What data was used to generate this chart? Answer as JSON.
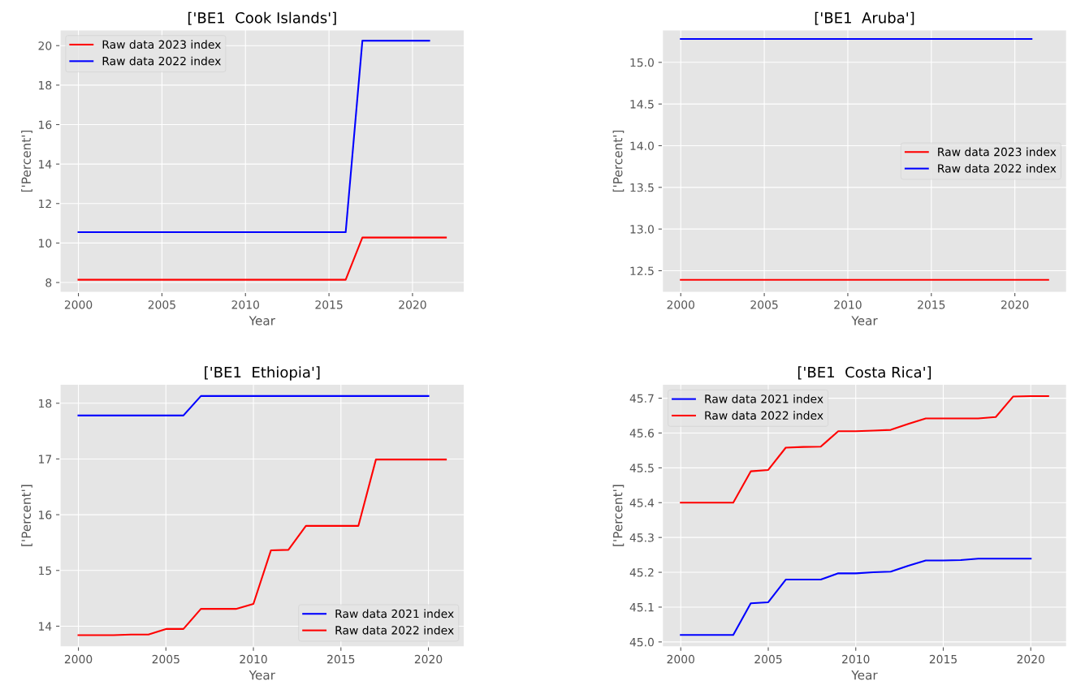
{
  "chart_data": [
    {
      "type": "line",
      "title": "['BE1  Cook Islands']",
      "xlabel": "Year",
      "ylabel": "['Percent']",
      "xlim": [
        1998.9,
        2023.1
      ],
      "ylim": [
        7.5,
        20.8
      ],
      "xticks": [
        2000,
        2005,
        2010,
        2015,
        2020
      ],
      "yticks": [
        8,
        10,
        12,
        14,
        16,
        18,
        20
      ],
      "grid": true,
      "legend": "top left",
      "series": [
        {
          "name": "Raw data 2023 index",
          "color": "#ff0000",
          "x": [
            2000,
            2001,
            2002,
            2003,
            2004,
            2005,
            2006,
            2007,
            2008,
            2009,
            2010,
            2011,
            2012,
            2013,
            2014,
            2015,
            2016,
            2017,
            2018,
            2019,
            2020,
            2021,
            2022
          ],
          "values": [
            8.14,
            8.14,
            8.14,
            8.14,
            8.14,
            8.14,
            8.14,
            8.14,
            8.14,
            8.14,
            8.14,
            8.14,
            8.14,
            8.14,
            8.14,
            8.14,
            8.14,
            10.28,
            10.28,
            10.28,
            10.28,
            10.28,
            10.28
          ]
        },
        {
          "name": "Raw data 2022 index",
          "color": "#0000ff",
          "x": [
            2000,
            2001,
            2002,
            2003,
            2004,
            2005,
            2006,
            2007,
            2008,
            2009,
            2010,
            2011,
            2012,
            2013,
            2014,
            2015,
            2016,
            2017,
            2018,
            2019,
            2020,
            2021
          ],
          "values": [
            10.55,
            10.55,
            10.55,
            10.55,
            10.55,
            10.55,
            10.55,
            10.55,
            10.55,
            10.55,
            10.55,
            10.55,
            10.55,
            10.55,
            10.55,
            10.55,
            10.55,
            20.25,
            20.25,
            20.25,
            20.25,
            20.25
          ]
        }
      ]
    },
    {
      "type": "line",
      "title": "['BE1  Aruba']",
      "xlabel": "Year",
      "ylabel": "['Percent']",
      "xlim": [
        1998.9,
        2023.1
      ],
      "ylim": [
        12.24,
        15.39
      ],
      "xticks": [
        2000,
        2005,
        2010,
        2015,
        2020
      ],
      "yticks": [
        {
          "value": 12.5,
          "label": "12.5"
        },
        {
          "value": 13.0,
          "label": "13.0"
        },
        {
          "value": 13.5,
          "label": "13.5"
        },
        {
          "value": 14.0,
          "label": "14.0"
        },
        {
          "value": 14.5,
          "label": "14.5"
        },
        {
          "value": 15.0,
          "label": "15.0"
        }
      ],
      "grid": true,
      "legend": "right",
      "series": [
        {
          "name": "Raw data 2023 index",
          "color": "#ff0000",
          "x": [
            2000,
            2001,
            2002,
            2003,
            2004,
            2005,
            2006,
            2007,
            2008,
            2009,
            2010,
            2011,
            2012,
            2013,
            2014,
            2015,
            2016,
            2017,
            2018,
            2019,
            2020,
            2021,
            2022
          ],
          "values": [
            12.39,
            12.39,
            12.39,
            12.39,
            12.39,
            12.39,
            12.39,
            12.39,
            12.39,
            12.39,
            12.39,
            12.39,
            12.39,
            12.39,
            12.39,
            12.39,
            12.39,
            12.39,
            12.39,
            12.39,
            12.39,
            12.39,
            12.39
          ]
        },
        {
          "name": "Raw data 2022 index",
          "color": "#0000ff",
          "x": [
            2000,
            2001,
            2002,
            2003,
            2004,
            2005,
            2006,
            2007,
            2008,
            2009,
            2010,
            2011,
            2012,
            2013,
            2014,
            2015,
            2016,
            2017,
            2018,
            2019,
            2020,
            2021
          ],
          "values": [
            15.28,
            15.28,
            15.28,
            15.28,
            15.28,
            15.28,
            15.28,
            15.28,
            15.28,
            15.28,
            15.28,
            15.28,
            15.28,
            15.28,
            15.28,
            15.28,
            15.28,
            15.28,
            15.28,
            15.28,
            15.28,
            15.28
          ]
        }
      ]
    },
    {
      "type": "line",
      "title": "['BE1  Ethiopia']",
      "xlabel": "Year",
      "ylabel": "['Percent']",
      "xlim": [
        1998.95,
        2022.05
      ],
      "ylim": [
        13.63,
        18.34
      ],
      "xticks": [
        2000,
        2005,
        2010,
        2015,
        2020
      ],
      "yticks": [
        14,
        15,
        16,
        17,
        18
      ],
      "grid": true,
      "legend": "bottom right",
      "series": [
        {
          "name": "Raw data 2021 index",
          "color": "#0000ff",
          "x": [
            2000,
            2001,
            2002,
            2003,
            2004,
            2005,
            2006,
            2007,
            2008,
            2009,
            2010,
            2011,
            2012,
            2013,
            2014,
            2015,
            2016,
            2017,
            2018,
            2019,
            2020
          ],
          "values": [
            17.78,
            17.78,
            17.78,
            17.78,
            17.78,
            17.78,
            17.78,
            18.13,
            18.13,
            18.13,
            18.13,
            18.13,
            18.13,
            18.13,
            18.13,
            18.13,
            18.13,
            18.13,
            18.13,
            18.13,
            18.13
          ]
        },
        {
          "name": "Raw data 2022 index",
          "color": "#ff0000",
          "x": [
            2000,
            2001,
            2002,
            2003,
            2004,
            2005,
            2006,
            2007,
            2008,
            2009,
            2010,
            2011,
            2012,
            2013,
            2014,
            2015,
            2016,
            2017,
            2018,
            2019,
            2020,
            2021
          ],
          "values": [
            13.84,
            13.84,
            13.84,
            13.85,
            13.85,
            13.95,
            13.95,
            14.31,
            14.31,
            14.31,
            14.4,
            15.36,
            15.37,
            15.8,
            15.8,
            15.8,
            15.8,
            16.99,
            16.99,
            16.99,
            16.99,
            16.99
          ]
        }
      ]
    },
    {
      "type": "line",
      "title": "['BE1  Costa Rica']",
      "xlabel": "Year",
      "ylabel": "['Percent']",
      "xlim": [
        1998.95,
        2022.05
      ],
      "ylim": [
        44.986,
        45.74
      ],
      "xticks": [
        2000,
        2005,
        2010,
        2015,
        2020
      ],
      "yticks": [
        {
          "value": 45.0,
          "label": "45.0"
        },
        {
          "value": 45.1,
          "label": "45.1"
        },
        {
          "value": 45.2,
          "label": "45.2"
        },
        {
          "value": 45.3,
          "label": "45.3"
        },
        {
          "value": 45.4,
          "label": "45.4"
        },
        {
          "value": 45.5,
          "label": "45.5"
        },
        {
          "value": 45.6,
          "label": "45.6"
        },
        {
          "value": 45.7,
          "label": "45.7"
        }
      ],
      "grid": true,
      "legend": "top left",
      "series": [
        {
          "name": "Raw data 2021 index",
          "color": "#0000ff",
          "x": [
            2000,
            2001,
            2002,
            2003,
            2004,
            2005,
            2006,
            2007,
            2008,
            2009,
            2010,
            2011,
            2012,
            2013,
            2014,
            2015,
            2016,
            2017,
            2018,
            2019,
            2020
          ],
          "values": [
            45.02,
            45.02,
            45.02,
            45.02,
            45.111,
            45.114,
            45.179,
            45.179,
            45.179,
            45.197,
            45.197,
            45.2,
            45.202,
            45.219,
            45.234,
            45.234,
            45.235,
            45.239,
            45.239,
            45.239,
            45.239
          ]
        },
        {
          "name": "Raw data 2022 index",
          "color": "#ff0000",
          "x": [
            2000,
            2001,
            2002,
            2003,
            2004,
            2005,
            2006,
            2007,
            2008,
            2009,
            2010,
            2011,
            2012,
            2013,
            2014,
            2015,
            2016,
            2017,
            2018,
            2019,
            2020,
            2021
          ],
          "values": [
            45.4,
            45.4,
            45.4,
            45.4,
            45.49,
            45.494,
            45.558,
            45.56,
            45.561,
            45.605,
            45.605,
            45.607,
            45.609,
            45.626,
            45.642,
            45.642,
            45.642,
            45.642,
            45.646,
            45.705,
            45.706,
            45.706
          ]
        }
      ]
    }
  ]
}
